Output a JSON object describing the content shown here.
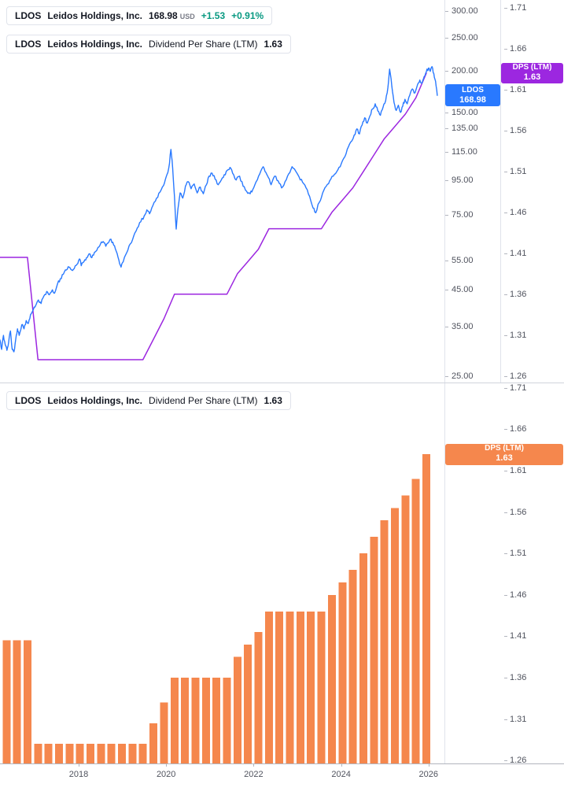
{
  "colors": {
    "price_line": "#2979FF",
    "dps_line": "#9C27E0",
    "dps_bars": "#F5874D",
    "gain": "#089981",
    "axis_text": "#50535E"
  },
  "legend_price": {
    "symbol": "LDOS",
    "name": "Leidos Holdings, Inc.",
    "price": "168.98",
    "currency": "USD",
    "change": "+1.53",
    "change_pct": "+0.91%"
  },
  "legend_dps_top": {
    "symbol": "LDOS",
    "name": "Leidos Holdings, Inc.",
    "metric": "Dividend Per Share (LTM)",
    "value": "1.63"
  },
  "legend_dps_bottom": {
    "symbol": "LDOS",
    "name": "Leidos Holdings, Inc.",
    "metric": "Dividend Per Share (LTM)",
    "value": "1.63"
  },
  "badges": {
    "price": {
      "line1": "LDOS",
      "line2": "168.98"
    },
    "dps_top": {
      "line1": "DPS (LTM)",
      "line2": "1.63"
    },
    "dps_bottom": {
      "line1": "DPS (LTM)",
      "line2": "1.63"
    }
  },
  "axes": {
    "price_ticks": [
      "300.00",
      "250.00",
      "200.00",
      "150.00",
      "135.00",
      "115.00",
      "95.00",
      "75.00",
      "55.00",
      "45.00",
      "35.00",
      "25.00"
    ],
    "dps_ticks_top": [
      "1.71",
      "1.66",
      "1.61",
      "1.56",
      "1.51",
      "1.46",
      "1.41",
      "1.36",
      "1.31",
      "1.26"
    ],
    "dps_ticks_bottom": [
      "1.71",
      "1.66",
      "1.61",
      "1.56",
      "1.51",
      "1.46",
      "1.41",
      "1.36",
      "1.31",
      "1.26"
    ],
    "years": [
      "2018",
      "2020",
      "2022",
      "2024",
      "2026"
    ]
  },
  "chart_data": [
    {
      "type": "line",
      "name": "LDOS share price",
      "symbol": "LDOS",
      "company": "Leidos Holdings, Inc.",
      "last": 168.98,
      "currency": "USD",
      "change": 1.53,
      "change_pct": 0.91,
      "y_scale": "log",
      "y_ticks": [
        300,
        250,
        200,
        150,
        135,
        115,
        95,
        75,
        55,
        45,
        35,
        25
      ],
      "x_range": [
        2016.2,
        2026.2
      ],
      "points": [
        [
          2016.2,
          32
        ],
        [
          2016.24,
          30
        ],
        [
          2016.28,
          33
        ],
        [
          2016.32,
          31
        ],
        [
          2016.36,
          29.8
        ],
        [
          2016.4,
          31.5
        ],
        [
          2016.44,
          34
        ],
        [
          2016.48,
          30
        ],
        [
          2016.52,
          29.5
        ],
        [
          2016.56,
          32
        ],
        [
          2016.6,
          34.5
        ],
        [
          2016.64,
          33
        ],
        [
          2016.7,
          35.5
        ],
        [
          2016.75,
          34.5
        ],
        [
          2016.8,
          36.5
        ],
        [
          2016.85,
          35.8
        ],
        [
          2016.9,
          38
        ],
        [
          2016.95,
          39
        ],
        [
          2017.0,
          40
        ],
        [
          2017.08,
          42
        ],
        [
          2017.14,
          41
        ],
        [
          2017.2,
          43
        ],
        [
          2017.27,
          44.5
        ],
        [
          2017.33,
          43.5
        ],
        [
          2017.4,
          45
        ],
        [
          2017.45,
          44
        ],
        [
          2017.52,
          47
        ],
        [
          2017.58,
          48.5
        ],
        [
          2017.65,
          50
        ],
        [
          2017.72,
          51.5
        ],
        [
          2017.78,
          52.5
        ],
        [
          2017.84,
          51.5
        ],
        [
          2017.9,
          52
        ],
        [
          2017.96,
          53.5
        ],
        [
          2018.02,
          55.5
        ],
        [
          2018.06,
          53
        ],
        [
          2018.12,
          54.5
        ],
        [
          2018.18,
          56
        ],
        [
          2018.24,
          57.5
        ],
        [
          2018.3,
          56
        ],
        [
          2018.36,
          58
        ],
        [
          2018.44,
          60
        ],
        [
          2018.5,
          61.5
        ],
        [
          2018.56,
          62.5
        ],
        [
          2018.62,
          60.5
        ],
        [
          2018.68,
          62
        ],
        [
          2018.74,
          63.5
        ],
        [
          2018.8,
          61
        ],
        [
          2018.86,
          58.5
        ],
        [
          2018.92,
          55
        ],
        [
          2018.97,
          52.5
        ],
        [
          2019.02,
          54.5
        ],
        [
          2019.1,
          58
        ],
        [
          2019.18,
          61.5
        ],
        [
          2019.26,
          65
        ],
        [
          2019.34,
          68.5
        ],
        [
          2019.42,
          71.5
        ],
        [
          2019.5,
          74.5
        ],
        [
          2019.56,
          77.5
        ],
        [
          2019.62,
          75.5
        ],
        [
          2019.7,
          80
        ],
        [
          2019.78,
          84
        ],
        [
          2019.86,
          87.5
        ],
        [
          2019.94,
          91.5
        ],
        [
          2020.0,
          97
        ],
        [
          2020.06,
          103
        ],
        [
          2020.11,
          117
        ],
        [
          2020.15,
          103
        ],
        [
          2020.19,
          85
        ],
        [
          2020.23,
          68
        ],
        [
          2020.27,
          78
        ],
        [
          2020.32,
          87
        ],
        [
          2020.38,
          84
        ],
        [
          2020.44,
          91
        ],
        [
          2020.5,
          94
        ],
        [
          2020.57,
          89.5
        ],
        [
          2020.64,
          92.5
        ],
        [
          2020.71,
          87
        ],
        [
          2020.78,
          90.5
        ],
        [
          2020.85,
          86.5
        ],
        [
          2020.92,
          92
        ],
        [
          2020.98,
          97.5
        ],
        [
          2021.05,
          99.5
        ],
        [
          2021.12,
          95.5
        ],
        [
          2021.19,
          92
        ],
        [
          2021.26,
          95
        ],
        [
          2021.33,
          98.5
        ],
        [
          2021.4,
          101.5
        ],
        [
          2021.46,
          103.5
        ],
        [
          2021.52,
          99.5
        ],
        [
          2021.6,
          95
        ],
        [
          2021.68,
          97.5
        ],
        [
          2021.76,
          91
        ],
        [
          2021.84,
          88
        ],
        [
          2021.92,
          86.5
        ],
        [
          2021.98,
          89
        ],
        [
          2022.06,
          94
        ],
        [
          2022.14,
          99
        ],
        [
          2022.22,
          104
        ],
        [
          2022.28,
          100
        ],
        [
          2022.34,
          96.5
        ],
        [
          2022.4,
          92
        ],
        [
          2022.48,
          97.5
        ],
        [
          2022.56,
          94.5
        ],
        [
          2022.64,
          90
        ],
        [
          2022.72,
          94
        ],
        [
          2022.8,
          99
        ],
        [
          2022.88,
          104
        ],
        [
          2022.96,
          101
        ],
        [
          2023.04,
          97
        ],
        [
          2023.12,
          93.5
        ],
        [
          2023.2,
          90
        ],
        [
          2023.28,
          85
        ],
        [
          2023.36,
          78.5
        ],
        [
          2023.42,
          76
        ],
        [
          2023.5,
          81.5
        ],
        [
          2023.58,
          87
        ],
        [
          2023.66,
          91
        ],
        [
          2023.74,
          94.5
        ],
        [
          2023.82,
          97.5
        ],
        [
          2023.9,
          100.5
        ],
        [
          2023.98,
          104
        ],
        [
          2024.06,
          110
        ],
        [
          2024.14,
          117
        ],
        [
          2024.22,
          123
        ],
        [
          2024.3,
          129
        ],
        [
          2024.36,
          134.5
        ],
        [
          2024.42,
          130
        ],
        [
          2024.48,
          138
        ],
        [
          2024.54,
          145
        ],
        [
          2024.6,
          140
        ],
        [
          2024.66,
          147
        ],
        [
          2024.72,
          154
        ],
        [
          2024.78,
          159.5
        ],
        [
          2024.84,
          152
        ],
        [
          2024.9,
          147.5
        ],
        [
          2024.96,
          156
        ],
        [
          2025.02,
          163
        ],
        [
          2025.07,
          178
        ],
        [
          2025.11,
          202
        ],
        [
          2025.16,
          180
        ],
        [
          2025.21,
          161
        ],
        [
          2025.26,
          152.5
        ],
        [
          2025.31,
          158
        ],
        [
          2025.36,
          150.5
        ],
        [
          2025.41,
          157
        ],
        [
          2025.46,
          164.5
        ],
        [
          2025.51,
          159.5
        ],
        [
          2025.57,
          169
        ],
        [
          2025.63,
          176.5
        ],
        [
          2025.69,
          172
        ],
        [
          2025.75,
          182
        ],
        [
          2025.8,
          187.5
        ],
        [
          2025.85,
          183.5
        ],
        [
          2025.9,
          192
        ],
        [
          2025.95,
          198.5
        ],
        [
          2026.0,
          203.5
        ],
        [
          2026.04,
          199
        ],
        [
          2026.08,
          205.5
        ],
        [
          2026.12,
          196
        ],
        [
          2026.16,
          186
        ],
        [
          2026.2,
          168.98
        ]
      ]
    },
    {
      "type": "line",
      "name": "Dividend Per Share (LTM) overlay",
      "last": 1.63,
      "x_left_edge": 2016.2,
      "y_ticks": [
        1.71,
        1.66,
        1.61,
        1.56,
        1.51,
        1.46,
        1.41,
        1.36,
        1.31,
        1.26
      ],
      "x": [
        2016.35,
        2016.59,
        2016.83,
        2017.07,
        2017.31,
        2017.55,
        2017.79,
        2018.03,
        2018.27,
        2018.51,
        2018.75,
        2018.99,
        2019.23,
        2019.47,
        2019.71,
        2019.95,
        2020.19,
        2020.43,
        2020.67,
        2020.91,
        2021.15,
        2021.39,
        2021.63,
        2021.87,
        2022.11,
        2022.35,
        2022.59,
        2022.83,
        2023.07,
        2023.31,
        2023.55,
        2023.79,
        2024.03,
        2024.27,
        2024.51,
        2024.75,
        2024.99,
        2025.23,
        2025.47,
        2025.71,
        2025.95
      ],
      "values": [
        1.405,
        1.405,
        1.405,
        1.28,
        1.28,
        1.28,
        1.28,
        1.28,
        1.28,
        1.28,
        1.28,
        1.28,
        1.28,
        1.28,
        1.305,
        1.33,
        1.36,
        1.36,
        1.36,
        1.36,
        1.36,
        1.36,
        1.385,
        1.4,
        1.415,
        1.44,
        1.44,
        1.44,
        1.44,
        1.44,
        1.44,
        1.46,
        1.475,
        1.49,
        1.51,
        1.53,
        1.55,
        1.565,
        1.58,
        1.6,
        1.63
      ]
    },
    {
      "type": "bar",
      "name": "Dividend Per Share (LTM)",
      "last": 1.63,
      "y_ticks": [
        1.71,
        1.66,
        1.61,
        1.56,
        1.51,
        1.46,
        1.41,
        1.36,
        1.31,
        1.26
      ],
      "x": [
        2016.35,
        2016.59,
        2016.83,
        2017.07,
        2017.31,
        2017.55,
        2017.79,
        2018.03,
        2018.27,
        2018.51,
        2018.75,
        2018.99,
        2019.23,
        2019.47,
        2019.71,
        2019.95,
        2020.19,
        2020.43,
        2020.67,
        2020.91,
        2021.15,
        2021.39,
        2021.63,
        2021.87,
        2022.11,
        2022.35,
        2022.59,
        2022.83,
        2023.07,
        2023.31,
        2023.55,
        2023.79,
        2024.03,
        2024.27,
        2024.51,
        2024.75,
        2024.99,
        2025.23,
        2025.47,
        2025.71,
        2025.95
      ],
      "values": [
        1.405,
        1.405,
        1.405,
        1.28,
        1.28,
        1.28,
        1.28,
        1.28,
        1.28,
        1.28,
        1.28,
        1.28,
        1.28,
        1.28,
        1.305,
        1.33,
        1.36,
        1.36,
        1.36,
        1.36,
        1.36,
        1.36,
        1.385,
        1.4,
        1.415,
        1.44,
        1.44,
        1.44,
        1.44,
        1.44,
        1.44,
        1.46,
        1.475,
        1.49,
        1.51,
        1.53,
        1.55,
        1.565,
        1.58,
        1.6,
        1.63
      ]
    }
  ]
}
